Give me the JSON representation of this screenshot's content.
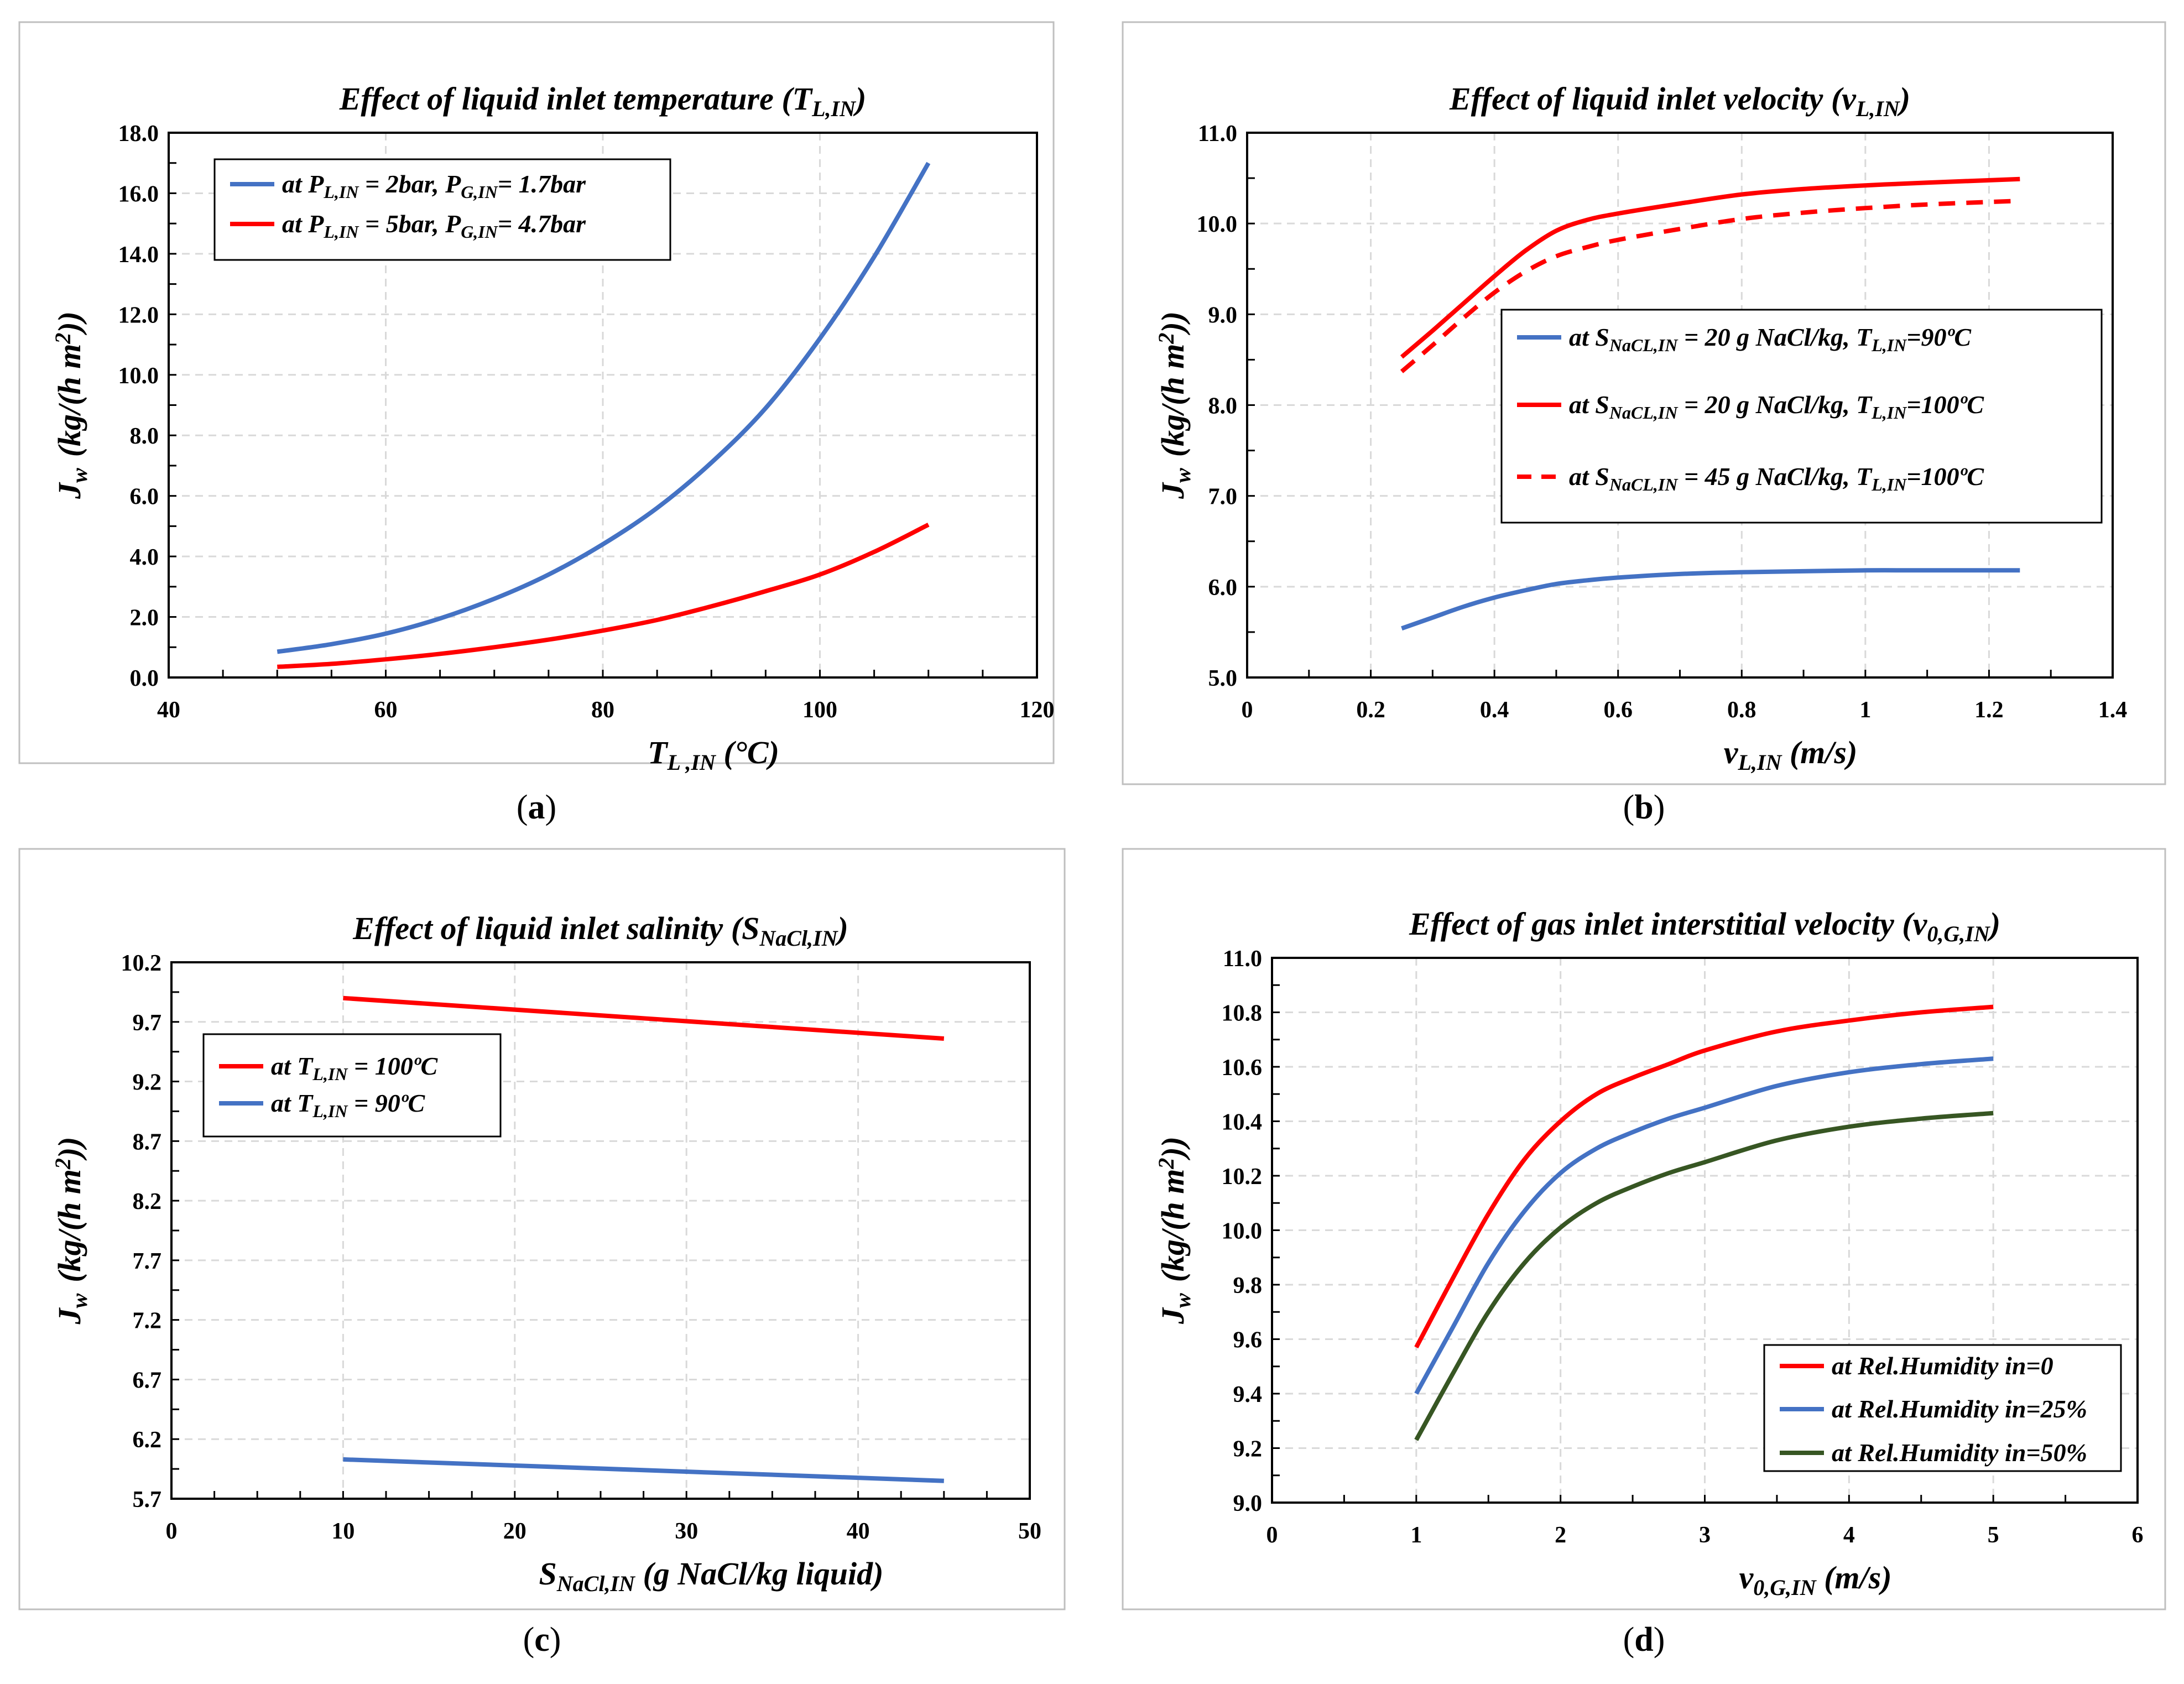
{
  "chart_data": [
    {
      "type": "line",
      "panel_label": "a",
      "title": "Effect of liquid inlet temperature (T",
      "title_sub": "L,IN",
      "title_end": ")",
      "ylabel_main": "J",
      "ylabel_sub": "w",
      "ylabel_unit": "(kg/(h m",
      "ylabel_sup": "2",
      "ylabel_close": "))",
      "xlabel_main": "T",
      "xlabel_sub": "L ,IN",
      "xlabel_unit": " (°C)",
      "xlim": [
        40,
        120
      ],
      "ylim": [
        0,
        18
      ],
      "xticks": [
        40,
        60,
        80,
        100,
        120
      ],
      "xtick_labels": [
        "40",
        "60",
        "80",
        "100",
        "120"
      ],
      "yticks": [
        0,
        2,
        4,
        6,
        8,
        10,
        12,
        14,
        16,
        18
      ],
      "ytick_labels": [
        "0.0",
        "2.0",
        "4.0",
        "6.0",
        "8.0",
        "10.0",
        "12.0",
        "14.0",
        "16.0",
        "18.0"
      ],
      "xminor": 5,
      "yminor": 1,
      "legend": "top-left",
      "series": [
        {
          "name": "at P_L,IN = 2bar, P_G,IN = 1.7bar",
          "legend_parts": [
            "at P",
            "L,IN",
            " = 2bar, P",
            "G,IN",
            "= 1.7bar"
          ],
          "color": "#4472C4",
          "dashed": false,
          "x": [
            50,
            55,
            60,
            65,
            70,
            75,
            80,
            85,
            90,
            95,
            100,
            105,
            110
          ],
          "y": [
            0.85,
            1.1,
            1.45,
            1.95,
            2.6,
            3.4,
            4.4,
            5.6,
            7.1,
            8.9,
            11.2,
            13.9,
            17.0
          ]
        },
        {
          "name": "at P_L,IN = 5bar, P_G,IN = 4.7bar",
          "legend_parts": [
            "at P",
            "L,IN",
            " = 5bar, P",
            "G,IN",
            "= 4.7bar"
          ],
          "color": "#FF0000",
          "dashed": false,
          "x": [
            50,
            55,
            60,
            65,
            70,
            75,
            80,
            85,
            90,
            95,
            100,
            105,
            110
          ],
          "y": [
            0.35,
            0.45,
            0.6,
            0.78,
            1.0,
            1.25,
            1.55,
            1.9,
            2.35,
            2.85,
            3.4,
            4.15,
            5.05
          ]
        }
      ]
    },
    {
      "type": "line",
      "panel_label": "b",
      "title": "Effect of liquid inlet velocity (v",
      "title_sub": "L,IN",
      "title_end": ")",
      "ylabel_main": "J",
      "ylabel_sub": "w",
      "ylabel_unit": "(kg/(h m",
      "ylabel_sup": "2",
      "ylabel_close": "))",
      "xlabel_main": "v",
      "xlabel_sub": "L,IN",
      "xlabel_unit": " (m/s)",
      "xlim": [
        0,
        1.4
      ],
      "ylim": [
        5,
        11
      ],
      "xticks": [
        0,
        0.2,
        0.4,
        0.6,
        0.8,
        1,
        1.2,
        1.4
      ],
      "xtick_labels": [
        "0",
        "0.2",
        "0.4",
        "0.6",
        "0.8",
        "1",
        "1.2",
        "1.4"
      ],
      "yticks": [
        5,
        6,
        7,
        8,
        9,
        10,
        11
      ],
      "ytick_labels": [
        "5.0",
        "6.0",
        "7.0",
        "8.0",
        "9.0",
        "10.0",
        "11.0"
      ],
      "xminor": 0.1,
      "yminor": 0.5,
      "legend": "center-right",
      "series": [
        {
          "name": "at S_NaCL,IN = 20 g NaCl/kg, T_L,IN=90ºC",
          "legend_parts": [
            "at S",
            "NaCL,IN",
            " = 20 g NaCl/kg, T",
            "L,IN",
            "=90ºC"
          ],
          "color": "#4472C4",
          "dashed": false,
          "x": [
            0.25,
            0.3,
            0.35,
            0.4,
            0.45,
            0.5,
            0.55,
            0.6,
            0.7,
            0.8,
            0.9,
            1.0,
            1.1,
            1.25
          ],
          "y": [
            5.54,
            5.66,
            5.78,
            5.88,
            5.96,
            6.03,
            6.07,
            6.1,
            6.14,
            6.16,
            6.17,
            6.18,
            6.18,
            6.18
          ]
        },
        {
          "name": "at S_NaCL,IN = 20 g NaCl/kg, T_L,IN=100ºC",
          "legend_parts": [
            "at S",
            "NaCL,IN",
            " = 20 g NaCl/kg, T",
            "L,IN",
            "=100ºC"
          ],
          "color": "#FF0000",
          "dashed": false,
          "x": [
            0.25,
            0.3,
            0.35,
            0.4,
            0.45,
            0.5,
            0.55,
            0.6,
            0.7,
            0.8,
            0.9,
            1.0,
            1.1,
            1.25
          ],
          "y": [
            8.53,
            8.82,
            9.12,
            9.42,
            9.7,
            9.92,
            10.04,
            10.11,
            10.22,
            10.32,
            10.38,
            10.42,
            10.45,
            10.49
          ]
        },
        {
          "name": "at S_NaCL,IN = 45 g NaCl/kg, T_L,IN=100ºC",
          "legend_parts": [
            "at S",
            "NaCL,IN",
            " = 45 g NaCl/kg, T",
            "L,IN",
            "=100ºC"
          ],
          "color": "#FF0000",
          "dashed": true,
          "x": [
            0.25,
            0.3,
            0.35,
            0.4,
            0.45,
            0.5,
            0.55,
            0.6,
            0.7,
            0.8,
            0.9,
            1.0,
            1.1,
            1.25
          ],
          "y": [
            8.37,
            8.66,
            8.96,
            9.24,
            9.47,
            9.64,
            9.74,
            9.82,
            9.94,
            10.05,
            10.12,
            10.17,
            10.21,
            10.25
          ]
        }
      ]
    },
    {
      "type": "line",
      "panel_label": "c",
      "title": "Effect of liquid inlet salinity (S",
      "title_sub": "NaCl,IN",
      "title_end": ")",
      "ylabel_main": "J",
      "ylabel_sub": "w",
      "ylabel_unit": "(kg/(h m",
      "ylabel_sup": "2",
      "ylabel_close": "))",
      "xlabel_main": "S",
      "xlabel_sub": "NaCl,IN",
      "xlabel_unit": " (g NaCl/kg liquid)",
      "xlim": [
        0,
        50
      ],
      "ylim": [
        5.7,
        10.2
      ],
      "xticks": [
        0,
        10,
        20,
        30,
        40,
        50
      ],
      "xtick_labels": [
        "0",
        "10",
        "20",
        "30",
        "40",
        "50"
      ],
      "yticks": [
        5.7,
        6.2,
        6.7,
        7.2,
        7.7,
        8.2,
        8.7,
        9.2,
        9.7,
        10.2
      ],
      "ytick_labels": [
        "5.7",
        "6.2",
        "6.7",
        "7.2",
        "7.7",
        "8.2",
        "8.7",
        "9.2",
        "9.7",
        "10.2"
      ],
      "xminor": 2.5,
      "yminor": 0.25,
      "legend": "top-left",
      "series": [
        {
          "name": "at T_L,IN = 100ºC",
          "legend_parts": [
            "at T",
            "L,IN",
            " = 100ºC",
            "",
            ""
          ],
          "color": "#FF0000",
          "dashed": false,
          "x": [
            10,
            45
          ],
          "y": [
            9.9,
            9.56
          ]
        },
        {
          "name": "at T_L,IN = 90ºC",
          "legend_parts": [
            "at T",
            "L,IN",
            " = 90ºC",
            "",
            ""
          ],
          "color": "#4472C4",
          "dashed": false,
          "x": [
            10,
            45
          ],
          "y": [
            6.03,
            5.85
          ]
        }
      ]
    },
    {
      "type": "line",
      "panel_label": "d",
      "title": "Effect of gas inlet interstitial velocity (v",
      "title_sub": "0,G,IN",
      "title_end": ")",
      "ylabel_main": "J",
      "ylabel_sub": "w",
      "ylabel_unit": "(kg/(h m",
      "ylabel_sup": "2",
      "ylabel_close": "))",
      "xlabel_main": "v",
      "xlabel_sub": "0,G,IN",
      "xlabel_unit": " (m/s)",
      "xlim": [
        0,
        6
      ],
      "ylim": [
        9.0,
        11.0
      ],
      "xticks": [
        0,
        1,
        2,
        3,
        4,
        5,
        6
      ],
      "xtick_labels": [
        "0",
        "1",
        "2",
        "3",
        "4",
        "5",
        "6"
      ],
      "yticks": [
        9.0,
        9.2,
        9.4,
        9.6,
        9.8,
        10.0,
        10.2,
        10.4,
        10.6,
        10.8,
        11.0
      ],
      "ytick_labels": [
        "9.0",
        "9.2",
        "9.4",
        "9.6",
        "9.8",
        "10.0",
        "10.2",
        "10.4",
        "10.6",
        "10.8",
        "11.0"
      ],
      "xminor": 0.5,
      "yminor": 0.1,
      "legend": "bottom-right",
      "series": [
        {
          "name": "at Rel.Humidity in=0",
          "legend_parts": [
            "at Rel.Humidity in=0",
            "",
            "",
            "",
            ""
          ],
          "color": "#FF0000",
          "dashed": false,
          "x": [
            1.0,
            1.25,
            1.5,
            1.75,
            2.0,
            2.25,
            2.5,
            2.75,
            3.0,
            3.5,
            4.0,
            4.5,
            5.0
          ],
          "y": [
            9.57,
            9.82,
            10.06,
            10.26,
            10.4,
            10.5,
            10.56,
            10.61,
            10.66,
            10.73,
            10.77,
            10.8,
            10.82
          ]
        },
        {
          "name": "at Rel.Humidity in=25%",
          "legend_parts": [
            "at Rel.Humidity in=25%",
            "",
            "",
            "",
            ""
          ],
          "color": "#4472C4",
          "dashed": false,
          "x": [
            1.0,
            1.25,
            1.5,
            1.75,
            2.0,
            2.25,
            2.5,
            2.75,
            3.0,
            3.5,
            4.0,
            4.5,
            5.0
          ],
          "y": [
            9.4,
            9.64,
            9.88,
            10.07,
            10.21,
            10.3,
            10.36,
            10.41,
            10.45,
            10.53,
            10.58,
            10.61,
            10.63
          ]
        },
        {
          "name": "at Rel.Humidity in=50%",
          "legend_parts": [
            "at Rel.Humidity in=50%",
            "",
            "",
            "",
            ""
          ],
          "color": "#375623",
          "dashed": false,
          "x": [
            1.0,
            1.25,
            1.5,
            1.75,
            2.0,
            2.25,
            2.5,
            2.75,
            3.0,
            3.5,
            4.0,
            4.5,
            5.0
          ],
          "y": [
            9.23,
            9.47,
            9.7,
            9.88,
            10.01,
            10.1,
            10.16,
            10.21,
            10.25,
            10.33,
            10.38,
            10.41,
            10.43
          ]
        }
      ]
    }
  ]
}
